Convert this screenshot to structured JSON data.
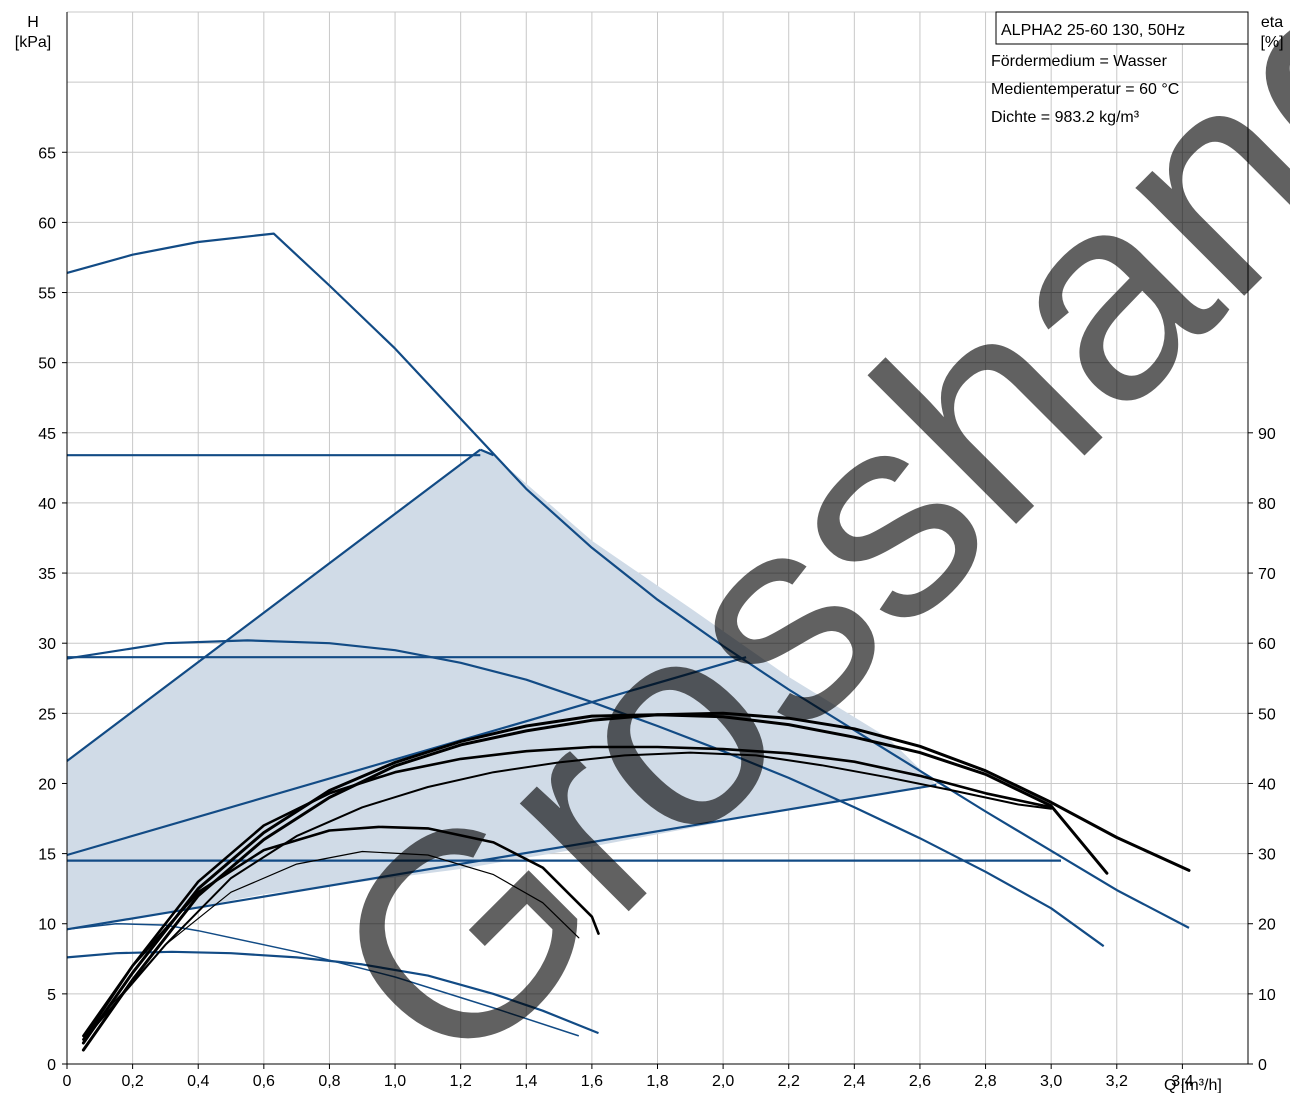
{
  "chart_data": {
    "type": "line",
    "info_box": {
      "title": "ALPHA2 25-60 130, 50Hz",
      "lines": [
        "Fördermedium = Wasser",
        "Medientemperatur = 60 °C",
        "Dichte = 983.2 kg/m³"
      ]
    },
    "watermark": "Grosshandel",
    "x_axis": {
      "label": "Q [m³/h]",
      "range": [
        0,
        3.6
      ],
      "ticks": [
        "0",
        "0,2",
        "0,4",
        "0,6",
        "0,8",
        "1,0",
        "1,2",
        "1,4",
        "1,6",
        "1,8",
        "2,0",
        "2,2",
        "2,4",
        "2,6",
        "2,8",
        "3,0",
        "3,2",
        "3,4"
      ]
    },
    "y_axis_left": {
      "label_line1": "H",
      "label_line2": "[kPa]",
      "range": [
        0,
        75
      ],
      "ticks": [
        "0",
        "5",
        "10",
        "15",
        "20",
        "25",
        "30",
        "35",
        "40",
        "45",
        "50",
        "55",
        "60",
        "65"
      ]
    },
    "y_axis_right": {
      "label_line1": "eta",
      "label_line2": "[%]",
      "range": [
        0,
        150
      ],
      "ticks": [
        "0",
        "10",
        "20",
        "30",
        "40",
        "50",
        "60",
        "70",
        "80",
        "90"
      ]
    },
    "grid": true,
    "colors": {
      "head": "#124b85",
      "efficiency": "#000000",
      "region_fill": "#d0dbe7",
      "grid": "#c8c8c8"
    },
    "operating_region": [
      [
        0,
        9.6
      ],
      [
        0,
        21.6
      ],
      [
        1.26,
        43.8
      ],
      [
        1.3,
        43.4
      ],
      [
        1.6,
        37.3
      ],
      [
        1.9,
        32.5
      ],
      [
        2.2,
        27.6
      ],
      [
        2.5,
        23.3
      ],
      [
        2.65,
        19.9
      ],
      [
        2.28,
        18.5
      ],
      [
        1.6,
        15.5
      ],
      [
        1.2,
        13.9
      ],
      [
        0.6,
        12.1
      ],
      [
        0.35,
        11.0
      ]
    ],
    "head_series": [
      {
        "values": [
          [
            0,
            56.4
          ],
          [
            0.2,
            57.7
          ],
          [
            0.4,
            58.6
          ],
          [
            0.63,
            59.2
          ],
          [
            0.8,
            55.5
          ],
          [
            1.0,
            51.0
          ],
          [
            1.2,
            46.0
          ],
          [
            1.4,
            41.0
          ],
          [
            1.6,
            36.8
          ],
          [
            1.8,
            33.1
          ],
          [
            2.0,
            29.8
          ],
          [
            2.2,
            26.7
          ],
          [
            2.4,
            23.8
          ],
          [
            2.6,
            20.9
          ],
          [
            2.8,
            18.0
          ],
          [
            3.0,
            15.2
          ],
          [
            3.2,
            12.4
          ],
          [
            3.42,
            9.7
          ]
        ]
      },
      {
        "values": [
          [
            0,
            28.9
          ],
          [
            0.3,
            30.0
          ],
          [
            0.55,
            30.2
          ],
          [
            0.8,
            30.0
          ],
          [
            1.0,
            29.5
          ],
          [
            1.2,
            28.6
          ],
          [
            1.4,
            27.4
          ],
          [
            1.6,
            25.8
          ],
          [
            1.8,
            24.1
          ],
          [
            2.0,
            22.3
          ],
          [
            2.2,
            20.4
          ],
          [
            2.4,
            18.3
          ],
          [
            2.6,
            16.1
          ],
          [
            2.8,
            13.7
          ],
          [
            3.0,
            11.1
          ],
          [
            3.16,
            8.4
          ]
        ]
      },
      {
        "values": [
          [
            0,
            7.6
          ],
          [
            0.15,
            7.9
          ],
          [
            0.32,
            8.0
          ],
          [
            0.5,
            7.9
          ],
          [
            0.7,
            7.6
          ],
          [
            0.9,
            7.1
          ],
          [
            1.1,
            6.3
          ],
          [
            1.3,
            5.0
          ],
          [
            1.45,
            3.8
          ],
          [
            1.62,
            2.2
          ]
        ]
      },
      {
        "values": [
          [
            0,
            9.6
          ],
          [
            0.15,
            10.0
          ],
          [
            0.3,
            9.9
          ],
          [
            0.4,
            9.5
          ],
          [
            0.7,
            8.0
          ],
          [
            1.0,
            6.2
          ],
          [
            1.3,
            4.0
          ],
          [
            1.56,
            2.0
          ]
        ]
      },
      {
        "values": [
          [
            0,
            43.4
          ],
          [
            1.26,
            43.4
          ]
        ]
      },
      {
        "values": [
          [
            0,
            29.0
          ],
          [
            2.05,
            29.0
          ]
        ]
      },
      {
        "values": [
          [
            0,
            14.5
          ],
          [
            3.03,
            14.5
          ]
        ]
      },
      {
        "values": [
          [
            0,
            21.6
          ],
          [
            1.26,
            43.8
          ]
        ]
      },
      {
        "values": [
          [
            0,
            14.9
          ],
          [
            2.07,
            29.0
          ]
        ]
      },
      {
        "values": [
          [
            0,
            9.6
          ],
          [
            2.65,
            19.9
          ]
        ]
      },
      {
        "values": [
          [
            1.26,
            43.8
          ],
          [
            1.3,
            43.4
          ]
        ]
      }
    ],
    "efficiency_series": [
      {
        "width": 3.0,
        "values": [
          [
            0.05,
            2.0
          ],
          [
            0.2,
            12.0
          ],
          [
            0.4,
            24.0
          ],
          [
            0.6,
            32.0
          ],
          [
            0.8,
            38.0
          ],
          [
            1.0,
            42.5
          ],
          [
            1.2,
            45.5
          ],
          [
            1.4,
            47.5
          ],
          [
            1.6,
            49.0
          ],
          [
            1.8,
            49.8
          ],
          [
            2.0,
            50.0
          ],
          [
            2.2,
            49.3
          ],
          [
            2.4,
            47.8
          ],
          [
            2.6,
            45.3
          ],
          [
            2.8,
            41.8
          ],
          [
            3.0,
            37.3
          ],
          [
            3.2,
            32.3
          ],
          [
            3.42,
            27.6
          ]
        ]
      },
      {
        "width": 3.0,
        "values": [
          [
            0.05,
            3.0
          ],
          [
            0.2,
            13.0
          ],
          [
            0.4,
            25.0
          ],
          [
            0.6,
            33.0
          ],
          [
            0.8,
            39.0
          ],
          [
            1.0,
            43.0
          ],
          [
            1.2,
            46.0
          ],
          [
            1.4,
            48.2
          ],
          [
            1.6,
            49.6
          ],
          [
            1.8,
            49.8
          ],
          [
            2.0,
            49.5
          ],
          [
            2.2,
            48.4
          ],
          [
            2.4,
            46.6
          ],
          [
            2.6,
            44.4
          ],
          [
            2.8,
            41.3
          ],
          [
            3.0,
            36.8
          ],
          [
            3.17,
            27.2
          ]
        ]
      },
      {
        "width": 2.6,
        "values": [
          [
            0.05,
            3.5
          ],
          [
            0.2,
            14.0
          ],
          [
            0.4,
            26.0
          ],
          [
            0.6,
            34.0
          ],
          [
            0.8,
            38.6
          ],
          [
            1.0,
            41.6
          ],
          [
            1.2,
            43.5
          ],
          [
            1.4,
            44.6
          ],
          [
            1.6,
            45.2
          ],
          [
            1.8,
            45.2
          ],
          [
            2.0,
            44.9
          ],
          [
            2.2,
            44.3
          ],
          [
            2.4,
            43.1
          ],
          [
            2.6,
            41.1
          ],
          [
            2.8,
            38.6
          ],
          [
            3.0,
            36.6
          ]
        ]
      },
      {
        "width": 2.0,
        "values": [
          [
            0.08,
            5.0
          ],
          [
            0.3,
            17.0
          ],
          [
            0.5,
            26.5
          ],
          [
            0.7,
            32.5
          ],
          [
            0.9,
            36.6
          ],
          [
            1.1,
            39.5
          ],
          [
            1.3,
            41.6
          ],
          [
            1.5,
            43.0
          ],
          [
            1.7,
            44.0
          ],
          [
            1.9,
            44.4
          ],
          [
            2.1,
            44.0
          ],
          [
            2.3,
            42.6
          ],
          [
            2.5,
            40.9
          ],
          [
            2.7,
            39.0
          ],
          [
            2.9,
            37.0
          ],
          [
            3.0,
            36.4
          ]
        ]
      },
      {
        "width": 2.6,
        "values": [
          [
            0.05,
            4.0
          ],
          [
            0.2,
            14.0
          ],
          [
            0.4,
            24.5
          ],
          [
            0.6,
            30.5
          ],
          [
            0.8,
            33.3
          ],
          [
            0.95,
            33.8
          ],
          [
            1.1,
            33.6
          ],
          [
            1.3,
            31.6
          ],
          [
            1.45,
            28.0
          ],
          [
            1.6,
            21.0
          ],
          [
            1.62,
            18.6
          ]
        ]
      },
      {
        "width": 1.2,
        "values": [
          [
            0.08,
            5.5
          ],
          [
            0.3,
            17.0
          ],
          [
            0.5,
            24.5
          ],
          [
            0.7,
            28.5
          ],
          [
            0.9,
            30.3
          ],
          [
            1.1,
            29.8
          ],
          [
            1.3,
            27.0
          ],
          [
            1.45,
            23.0
          ],
          [
            1.56,
            18.0
          ]
        ]
      }
    ]
  }
}
